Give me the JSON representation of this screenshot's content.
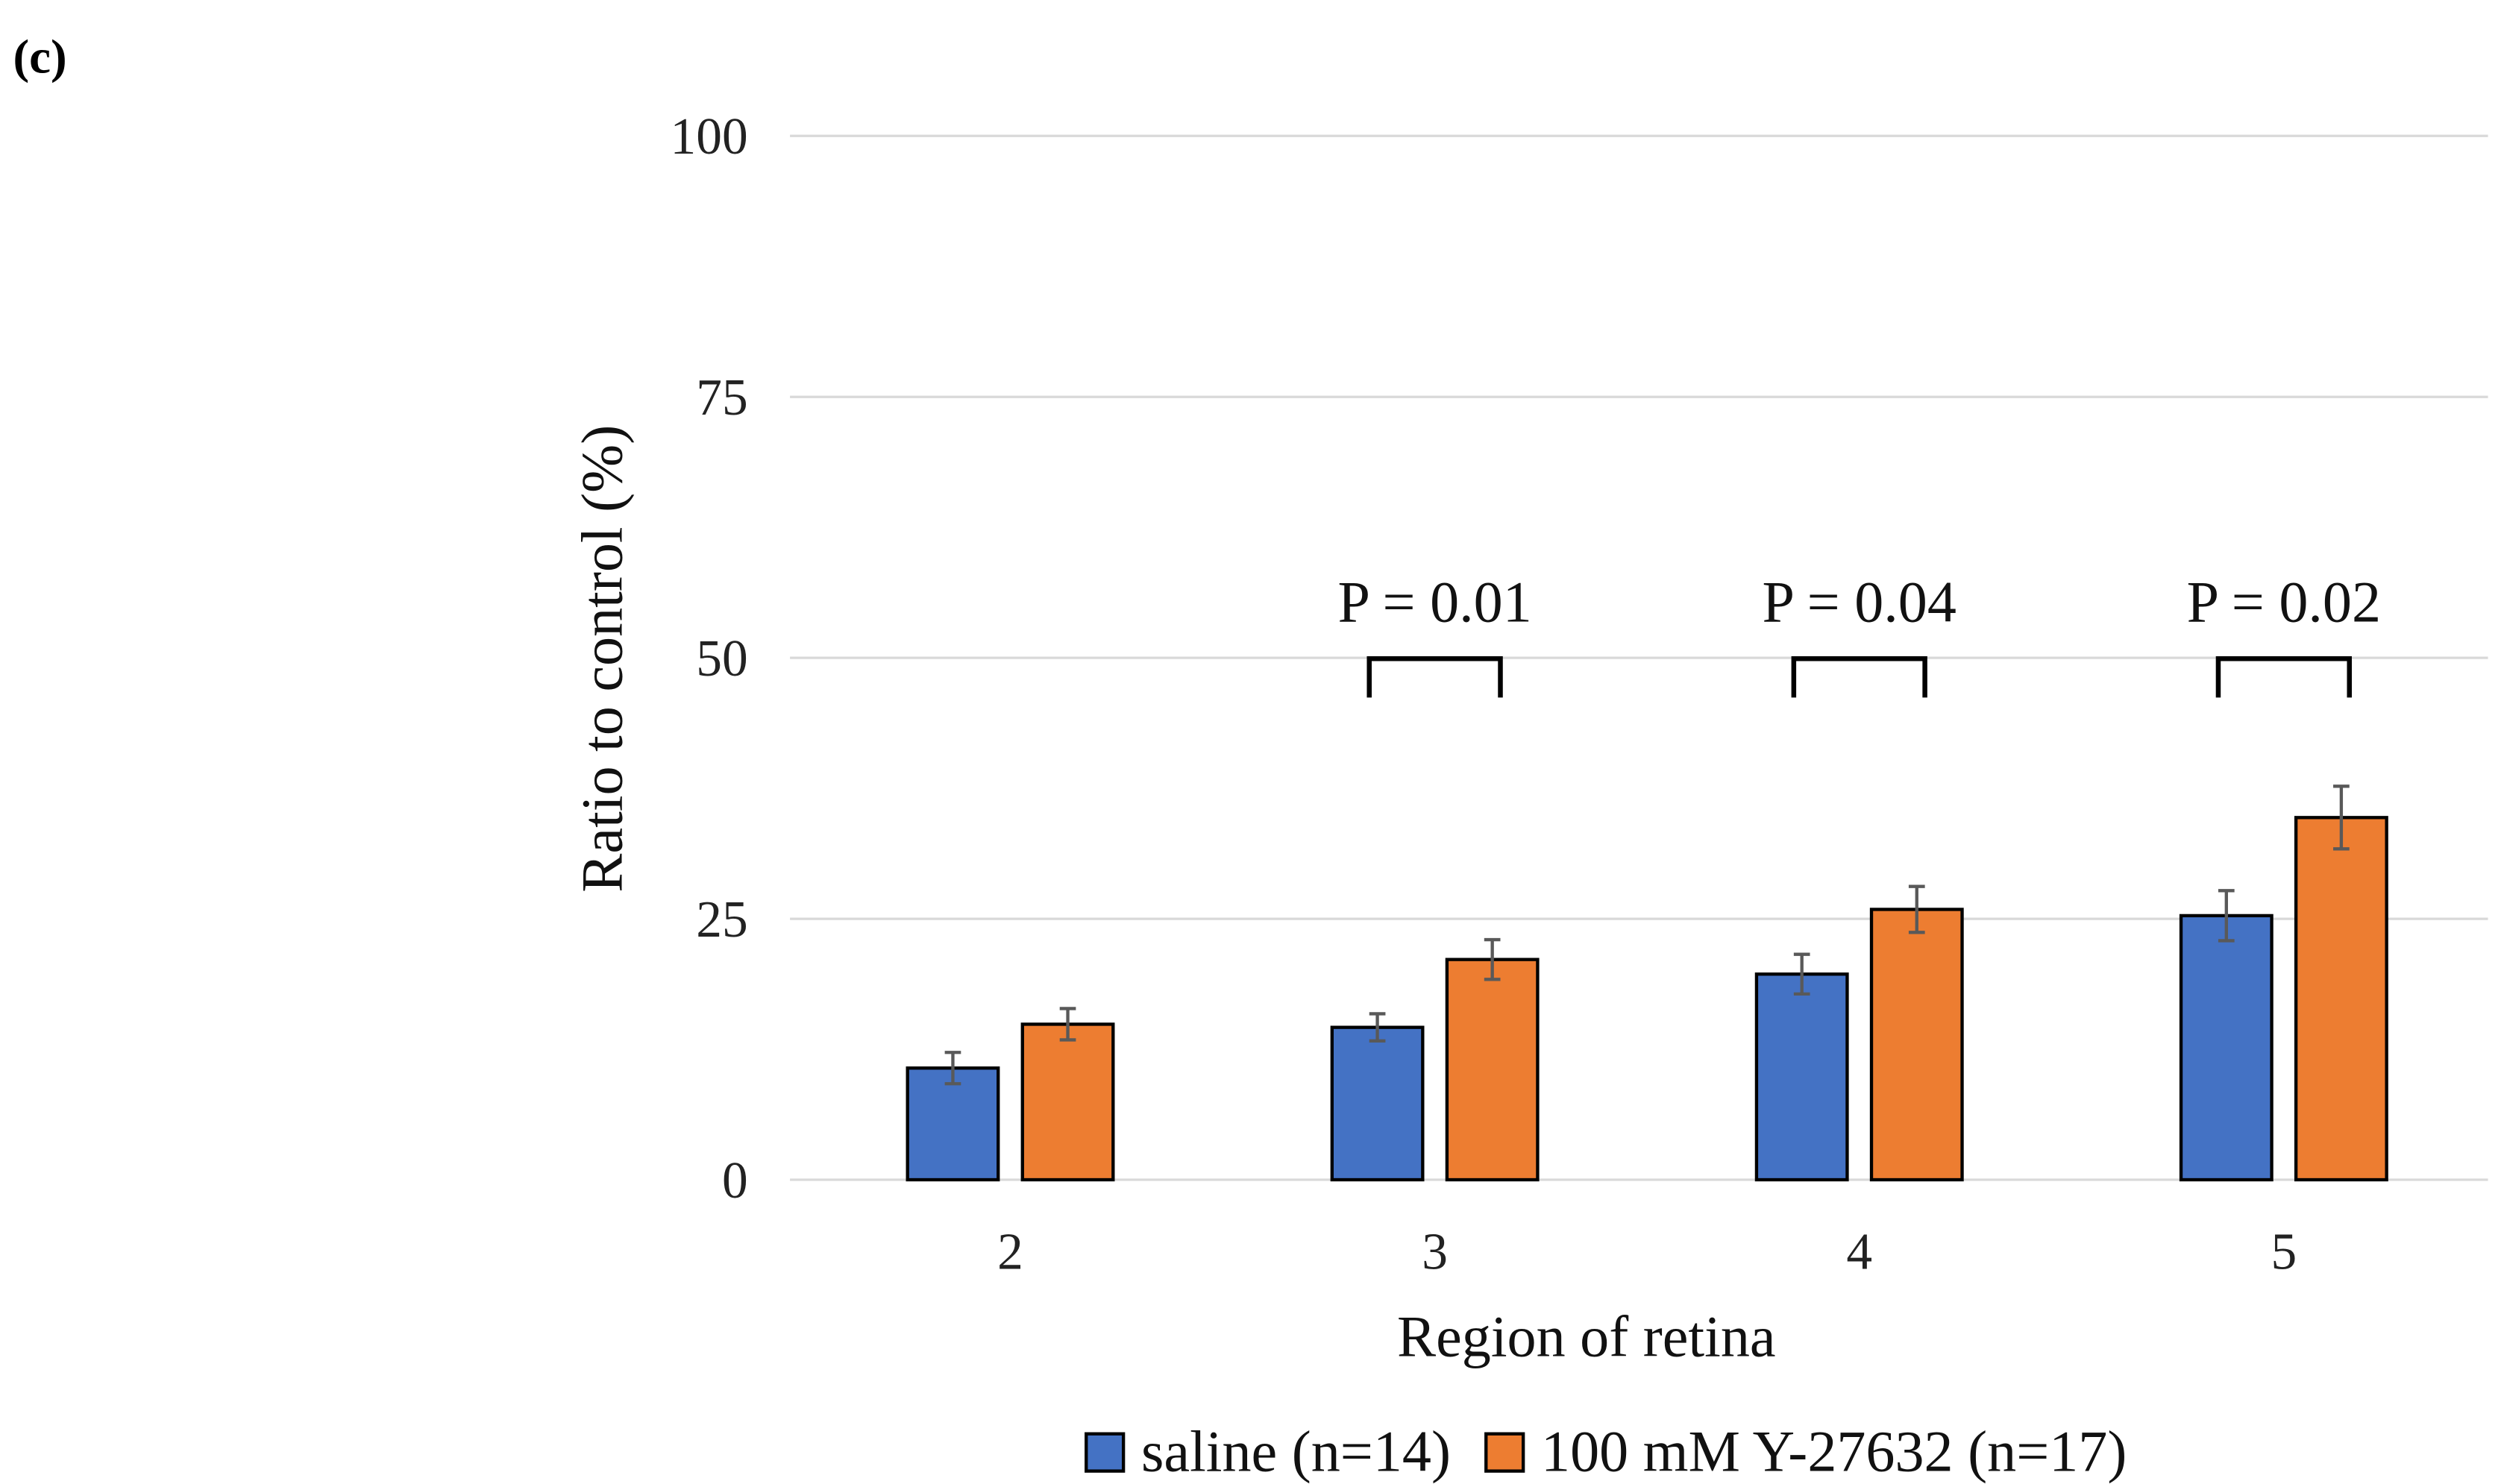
{
  "panel_label": "(c)",
  "chart_data": {
    "type": "bar",
    "title": "",
    "xlabel": "Region of retina",
    "ylabel": "Ratio to control (%)",
    "ylim": [
      0,
      100
    ],
    "yticks": [
      "0",
      "25",
      "50",
      "75",
      "100"
    ],
    "grid": true,
    "legend_position": "bottom",
    "categories": [
      "2",
      "3",
      "4",
      "5"
    ],
    "series": [
      {
        "name": "saline (n=14)",
        "color": "#4472C4",
        "values": [
          10.7,
          14.6,
          19.7,
          25.3
        ],
        "errors": [
          1.5,
          1.3,
          1.9,
          2.4
        ]
      },
      {
        "name": "100 mM Y-27632 (n=17)",
        "color": "#ED7D31",
        "values": [
          14.9,
          21.1,
          25.9,
          34.7
        ],
        "errors": [
          1.5,
          1.9,
          2.2,
          3.0
        ]
      }
    ],
    "annotations": [
      {
        "category": "3",
        "text": "P = 0.01"
      },
      {
        "category": "4",
        "text": "P = 0.04"
      },
      {
        "category": "5",
        "text": "P = 0.02"
      }
    ]
  }
}
